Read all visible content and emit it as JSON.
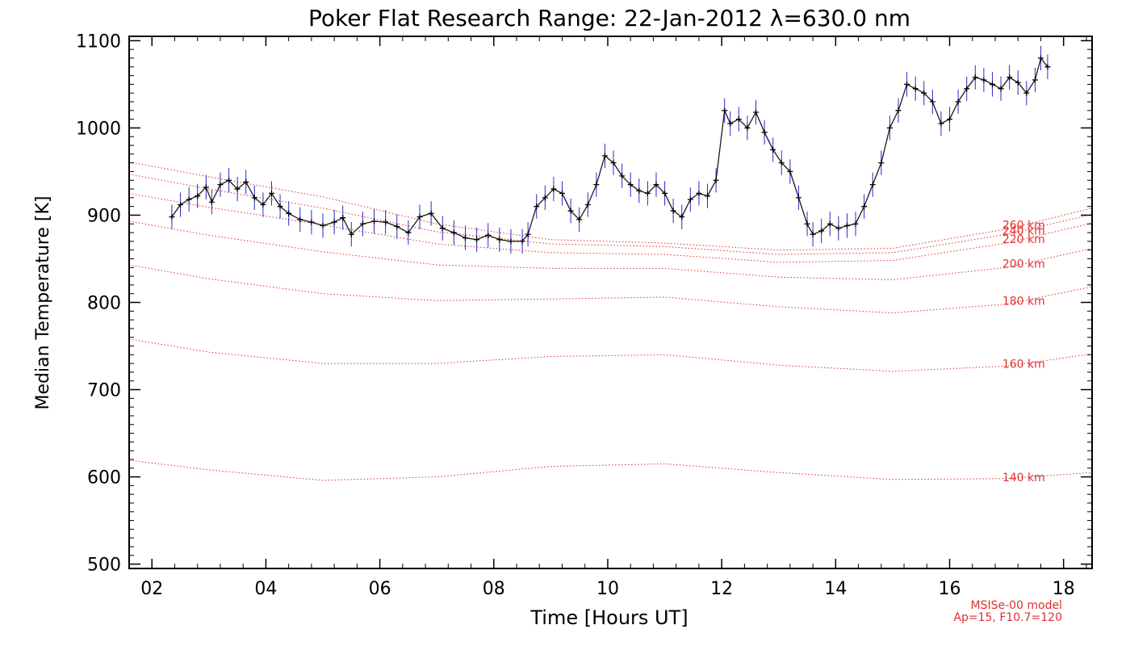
{
  "chart_data": {
    "type": "line",
    "title": "Poker Flat Research Range: 22-Jan-2012 λ=630.0 nm",
    "xlabel": "Time [Hours UT]",
    "ylabel": "Median Temperature [K]",
    "xlim": [
      1.6,
      18.5
    ],
    "ylim": [
      495,
      1105
    ],
    "x_ticks": [
      2,
      4,
      6,
      8,
      10,
      12,
      14,
      16,
      18
    ],
    "x_tick_labels": [
      "02",
      "04",
      "06",
      "08",
      "10",
      "12",
      "14",
      "16",
      "18"
    ],
    "y_ticks": [
      500,
      600,
      700,
      800,
      900,
      1000,
      1100
    ],
    "y_tick_labels": [
      "500",
      "600",
      "700",
      "800",
      "900",
      "1000",
      "1100"
    ],
    "grid": false,
    "colors": {
      "data_line": "#1a1a1a",
      "error_bars": "#2a2acc",
      "markers": "#000000",
      "model_lines": "#e03030",
      "frame": "#000000"
    },
    "measured_series": {
      "name": "",
      "x": [
        2.35,
        2.5,
        2.65,
        2.8,
        2.95,
        3.05,
        3.2,
        3.35,
        3.5,
        3.65,
        3.8,
        3.95,
        4.1,
        4.25,
        4.4,
        4.6,
        4.8,
        5.0,
        5.2,
        5.35,
        5.5,
        5.7,
        5.9,
        6.1,
        6.3,
        6.5,
        6.7,
        6.9,
        7.1,
        7.3,
        7.5,
        7.7,
        7.9,
        8.1,
        8.3,
        8.5,
        8.6,
        8.75,
        8.9,
        9.05,
        9.2,
        9.35,
        9.5,
        9.65,
        9.8,
        9.95,
        10.1,
        10.25,
        10.4,
        10.55,
        10.7,
        10.85,
        11.0,
        11.15,
        11.3,
        11.45,
        11.6,
        11.75,
        11.9,
        12.05,
        12.15,
        12.3,
        12.45,
        12.6,
        12.75,
        12.9,
        13.05,
        13.2,
        13.35,
        13.5,
        13.6,
        13.75,
        13.9,
        14.05,
        14.2,
        14.35,
        14.5,
        14.65,
        14.8,
        14.95,
        15.1,
        15.25,
        15.4,
        15.55,
        15.7,
        15.85,
        16.0,
        16.15,
        16.3,
        16.45,
        16.6,
        16.75,
        16.9,
        17.05,
        17.2,
        17.35,
        17.5,
        17.6,
        17.72
      ],
      "y": [
        898,
        912,
        918,
        922,
        932,
        915,
        935,
        940,
        930,
        938,
        920,
        912,
        925,
        910,
        902,
        895,
        892,
        888,
        892,
        897,
        878,
        890,
        893,
        892,
        887,
        880,
        898,
        902,
        885,
        880,
        874,
        872,
        877,
        872,
        870,
        870,
        878,
        910,
        920,
        930,
        925,
        905,
        895,
        912,
        935,
        968,
        960,
        945,
        935,
        928,
        925,
        935,
        925,
        905,
        898,
        918,
        925,
        922,
        940,
        1020,
        1005,
        1010,
        1000,
        1018,
        995,
        975,
        960,
        950,
        920,
        890,
        878,
        882,
        890,
        885,
        888,
        890,
        910,
        935,
        960,
        1000,
        1020,
        1050,
        1045,
        1040,
        1030,
        1005,
        1010,
        1030,
        1045,
        1058,
        1055,
        1050,
        1045,
        1058,
        1052,
        1040,
        1055,
        1080,
        1070
      ]
    },
    "model_series": [
      {
        "name": "140 km",
        "x": [
          1.6,
          3,
          5,
          7,
          9,
          11,
          13,
          15,
          17,
          18.5
        ],
        "y": [
          619,
          608,
          596,
          600,
          612,
          615,
          605,
          597,
          598,
          605
        ]
      },
      {
        "name": "160 km",
        "x": [
          1.6,
          3,
          5,
          7,
          9,
          11,
          13,
          15,
          17,
          18.5
        ],
        "y": [
          758,
          743,
          730,
          730,
          738,
          740,
          728,
          721,
          727,
          741
        ]
      },
      {
        "name": "180 km",
        "x": [
          1.6,
          3,
          5,
          7,
          9,
          11,
          13,
          15,
          17,
          18.5
        ],
        "y": [
          843,
          827,
          810,
          802,
          804,
          806,
          795,
          788,
          798,
          818
        ]
      },
      {
        "name": "200 km",
        "x": [
          1.6,
          3,
          5,
          7,
          9,
          11,
          13,
          15,
          17,
          18.5
        ],
        "y": [
          893,
          877,
          858,
          843,
          839,
          839,
          829,
          826,
          840,
          862
        ]
      },
      {
        "name": "220 km",
        "x": [
          1.6,
          3,
          5,
          7,
          9,
          11,
          13,
          15,
          17,
          18.5
        ],
        "y": [
          925,
          909,
          889,
          867,
          857,
          855,
          846,
          848,
          868,
          891
        ]
      },
      {
        "name": "240 km",
        "x": [
          1.6,
          3,
          5,
          7,
          9,
          11,
          13,
          15,
          17,
          18.5
        ],
        "y": [
          947,
          930,
          908,
          881,
          867,
          864,
          855,
          857,
          878,
          901
        ]
      },
      {
        "name": "260 km",
        "x": [
          1.6,
          3,
          5,
          7,
          9,
          11,
          13,
          15,
          17,
          18.5
        ],
        "y": [
          961,
          944,
          921,
          890,
          872,
          868,
          860,
          862,
          884,
          908
        ]
      }
    ],
    "model_label_lines": [
      "MSISe-00 model",
      "Ap=15, F10.7=120"
    ]
  }
}
